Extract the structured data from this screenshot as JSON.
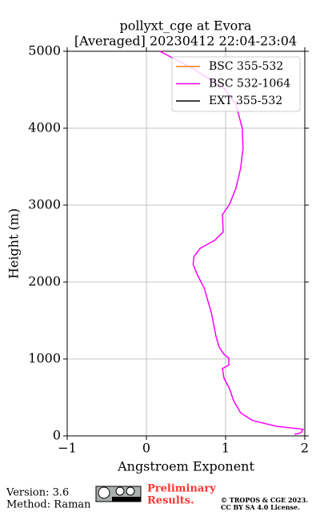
{
  "chart_data": {
    "type": "line",
    "title": [
      "pollyxt_cge at Evora",
      "[Averaged] 20230412 22:04-23:04"
    ],
    "xlabel": "Angstroem Exponent",
    "ylabel": "Height (m)",
    "xlim": [
      -1,
      2
    ],
    "ylim": [
      0,
      5000
    ],
    "xticks": [
      {
        "value": -1,
        "label": "−1"
      },
      0,
      1,
      2
    ],
    "yticks": [
      0,
      1000,
      2000,
      3000,
      4000,
      5000
    ],
    "grid": true,
    "legend": "upper right",
    "series": [
      {
        "name": "BSC 355-532",
        "color": "#ff7f0e",
        "x": [
          null
        ],
        "y": [
          null
        ]
      },
      {
        "name": "BSC 532-1064",
        "color": "#ff00ff",
        "x": [
          0.17,
          0.58,
          0.98,
          1.13,
          1.21,
          1.22,
          1.19,
          1.13,
          1.05,
          0.96,
          0.97,
          0.86,
          0.68,
          0.6,
          0.59,
          0.64,
          0.73,
          0.82,
          0.88,
          0.92,
          0.98,
          1.04,
          1.04,
          0.96,
          0.98,
          1.05,
          1.1,
          1.19,
          1.34,
          1.64,
          1.98,
          1.95,
          1.87
        ],
        "y": [
          5000,
          4780,
          4520,
          4310,
          4000,
          3740,
          3480,
          3220,
          3010,
          2875,
          2650,
          2540,
          2440,
          2330,
          2230,
          2100,
          1920,
          1600,
          1290,
          1150,
          1060,
          1010,
          920,
          875,
          750,
          615,
          460,
          300,
          200,
          125,
          85,
          40,
          20
        ]
      },
      {
        "name": "EXT 355-532",
        "color": "#000000",
        "x": [
          null
        ],
        "y": [
          null
        ]
      }
    ]
  },
  "footer": {
    "version": "Version: 3.6",
    "method": "Method: Raman",
    "notice": [
      "Preliminary",
      "Results."
    ],
    "copyright": [
      "© TROPOS & CGE 2023.",
      "CC BY SA 4.0 License."
    ]
  }
}
